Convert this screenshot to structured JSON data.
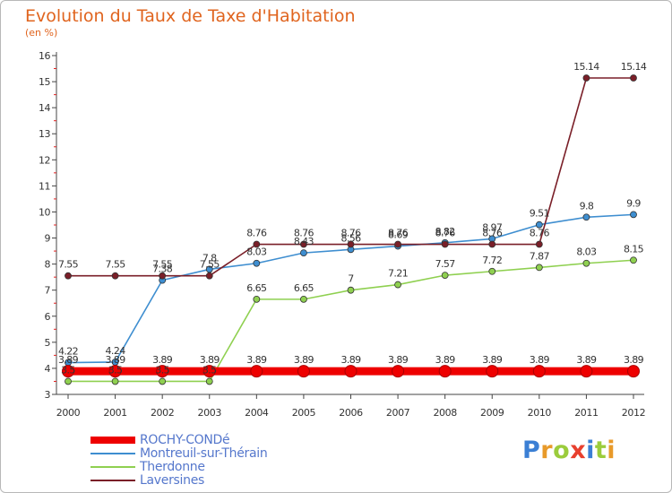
{
  "title": "Evolution du Taux de Taxe d'Habitation",
  "subtitle": "(en %)",
  "logo": {
    "text": "Proxiti",
    "letter_colors": [
      "#3b7fd4",
      "#e89a2a",
      "#9bcc3c",
      "#e8402e",
      "#3b7fd4",
      "#9bcc3c",
      "#e89a2a"
    ]
  },
  "chart_data": {
    "type": "line",
    "title": "Evolution du Taux de Taxe d'Habitation",
    "subtitle": "(en %)",
    "xlabel": "",
    "ylabel": "",
    "x": [
      "2000",
      "2001",
      "2002",
      "2003",
      "2004",
      "2005",
      "2006",
      "2007",
      "2008",
      "2009",
      "2010",
      "2011",
      "2012"
    ],
    "ylim": [
      3,
      16
    ],
    "yticks": [
      "3",
      "4",
      "5",
      "6",
      "7",
      "8",
      "9",
      "10",
      "11",
      "12",
      "13",
      "14",
      "15",
      "16"
    ],
    "grid": false,
    "legend_position": "bottom-left",
    "series": [
      {
        "name": "ROCHY-CONDé",
        "color": "#ee0000",
        "values": [
          3.89,
          3.89,
          3.89,
          3.89,
          3.89,
          3.89,
          3.89,
          3.89,
          3.89,
          3.89,
          3.89,
          3.89,
          3.89
        ],
        "labels": [
          "3.89",
          "3.89",
          "3.89",
          "3.89",
          "3.89",
          "3.89",
          "3.89",
          "3.89",
          "3.89",
          "3.89",
          "3.89",
          "3.89",
          "3.89"
        ]
      },
      {
        "name": "Montreuil-sur-Thérain",
        "color": "#3e8ed0",
        "values": [
          4.22,
          4.24,
          7.38,
          7.8,
          8.03,
          8.43,
          8.56,
          8.69,
          8.82,
          8.97,
          9.51,
          9.8,
          9.9
        ],
        "labels": [
          "4.22",
          "4.24",
          "7.38",
          "7.8",
          "8.03",
          "8.43",
          "8.56",
          "8.69",
          "8.82",
          "8.97",
          "9.51",
          "9.8",
          "9.9"
        ]
      },
      {
        "name": "Therdonne",
        "color": "#8fd050",
        "values": [
          3.5,
          3.5,
          3.5,
          3.5,
          6.65,
          6.65,
          7,
          7.21,
          7.57,
          7.72,
          7.87,
          8.03,
          8.15
        ],
        "labels": [
          "3.5",
          "3.5",
          "3.5",
          "3.5",
          "6.65",
          "6.65",
          "7",
          "7.21",
          "7.57",
          "7.72",
          "7.87",
          "8.03",
          "8.15"
        ]
      },
      {
        "name": "Laversines",
        "color": "#7a1f28",
        "values": [
          7.55,
          7.55,
          7.55,
          7.55,
          8.76,
          8.76,
          8.76,
          8.76,
          8.76,
          8.76,
          8.76,
          15.14,
          15.14
        ],
        "labels": [
          "7.55",
          "7.55",
          "7.55",
          "7.55",
          "8.76",
          "8.76",
          "8.76",
          "8.76",
          "8.76",
          "8.76",
          "8.76",
          "15.14",
          "15.14"
        ]
      }
    ]
  }
}
